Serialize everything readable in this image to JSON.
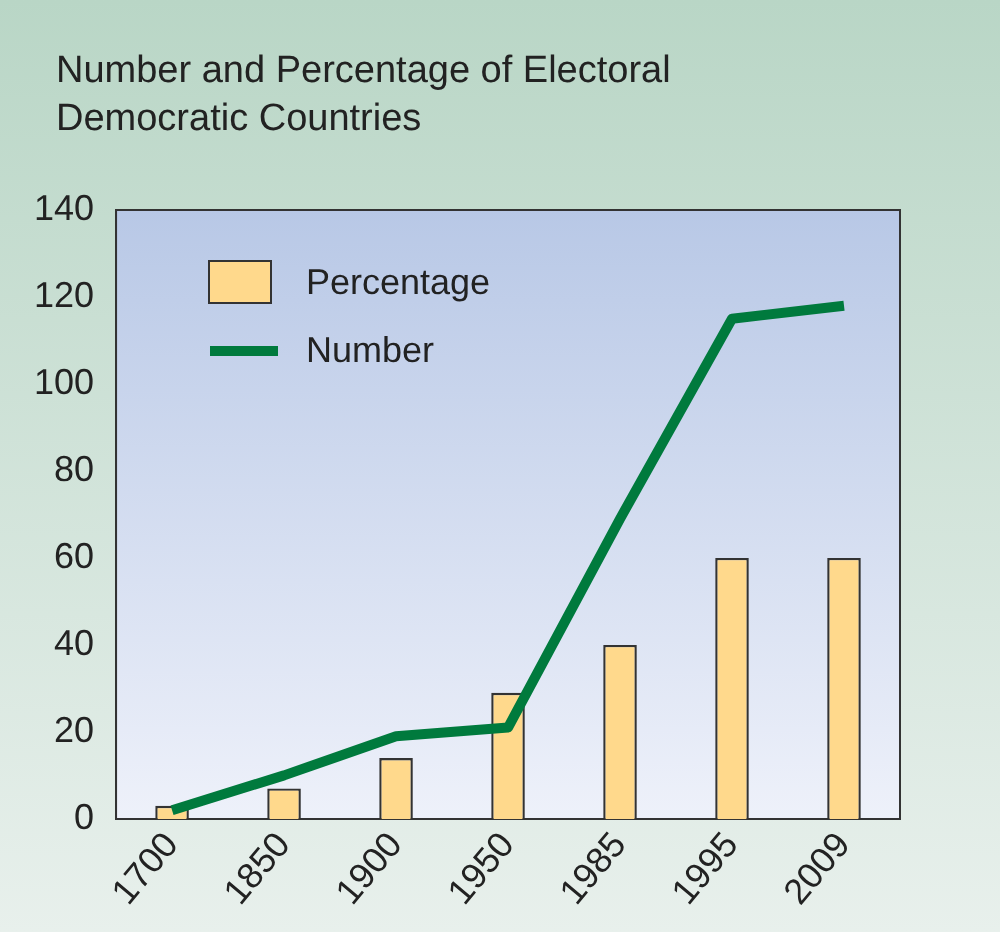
{
  "chart_data": {
    "type": "bar",
    "title": "Number and Percentage of Electoral Democratic Countries",
    "categories": [
      "1700",
      "1850",
      "1900",
      "1950",
      "1985",
      "1995",
      "2009"
    ],
    "series": [
      {
        "name": "Percentage",
        "color": "#ffd98c",
        "values": [
          3,
          7,
          14,
          29,
          40,
          60,
          60
        ]
      },
      {
        "name": "Number",
        "type": "line",
        "color": "#007a3d",
        "values": [
          2,
          10,
          19,
          21,
          69,
          115,
          118
        ]
      }
    ],
    "ylim": [
      0,
      140
    ],
    "yticks": [
      0,
      20,
      40,
      60,
      80,
      100,
      120,
      140
    ],
    "grid": false,
    "legend": "top left",
    "marker": "none"
  }
}
